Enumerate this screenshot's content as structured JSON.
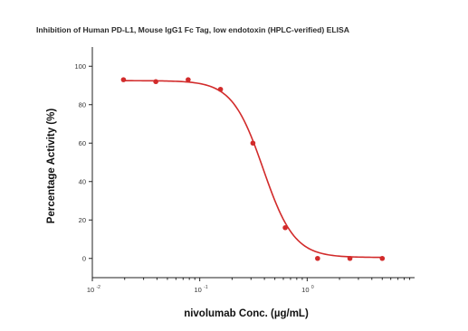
{
  "chart_data": {
    "type": "scatter",
    "title": "Inhibition of Human PD-L1, Mouse IgG1 Fc Tag, low endotoxin (HPLC-verified) ELISA",
    "xlabel": "nivolumab Conc. (µg/mL)",
    "ylabel": "Percentage Activity (%)",
    "x_scale": "log",
    "xlim": [
      0.01,
      10
    ],
    "ylim": [
      -10,
      110
    ],
    "yticks": [
      0,
      20,
      40,
      60,
      80,
      100
    ],
    "xticks": [
      {
        "value": 0.01,
        "base": "10",
        "exp": "-2"
      },
      {
        "value": 0.1,
        "base": "10",
        "exp": "-1"
      },
      {
        "value": 1,
        "base": "10",
        "exp": "0"
      }
    ],
    "grid": false,
    "colors": {
      "series": "#d22b2b"
    },
    "series": [
      {
        "x": [
          0.0195,
          0.039,
          0.078,
          0.156,
          0.3125,
          0.625,
          1.25,
          2.5,
          5.0
        ],
        "y": [
          93,
          92,
          93,
          88,
          60,
          16,
          0,
          0,
          0
        ]
      }
    ],
    "fit": {
      "top": 92.5,
      "bottom": 0.5,
      "ic50": 0.39,
      "hill": 3.0
    }
  }
}
